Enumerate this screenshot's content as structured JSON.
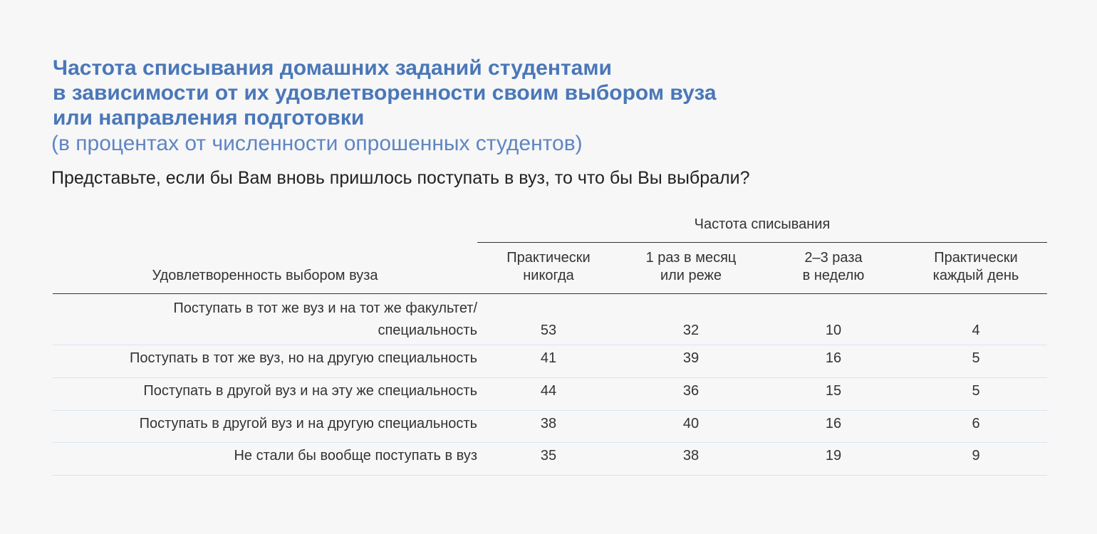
{
  "chart_data": {
    "type": "table",
    "title_lines": [
      "Частота списывания домашних заданий студентами",
      "в зависимости от их удовлетворенности своим выбором вуза",
      "или направления подготовки"
    ],
    "subtitle": "(в процентах от численности опрошенных студентов)",
    "question": "Представьте, если бы Вам вновь пришлось поступать в вуз, то что бы Вы выбрали?",
    "group_header": "Частота списывания",
    "stub_header": "Удовлетворенность выбором вуза",
    "columns": [
      [
        "Практически",
        "никогда"
      ],
      [
        "1 раз в месяц",
        "или реже"
      ],
      [
        "2–3 раза",
        "в неделю"
      ],
      [
        "Практически",
        "каждый день"
      ]
    ],
    "rows": [
      {
        "label": [
          "Поступать в тот же вуз и на тот же факультет/",
          "специальность"
        ],
        "values": [
          53,
          32,
          10,
          4
        ]
      },
      {
        "label": [
          "Поступать в тот же вуз, но на другую специальность"
        ],
        "values": [
          41,
          39,
          16,
          5
        ]
      },
      {
        "label": [
          "Поступать в другой вуз и на эту же специальность"
        ],
        "values": [
          44,
          36,
          15,
          5
        ]
      },
      {
        "label": [
          "Поступать в другой вуз и на другую специальность"
        ],
        "values": [
          38,
          40,
          16,
          6
        ]
      },
      {
        "label": [
          "Не стали бы вообще поступать в вуз"
        ],
        "values": [
          35,
          38,
          19,
          9
        ]
      }
    ]
  }
}
